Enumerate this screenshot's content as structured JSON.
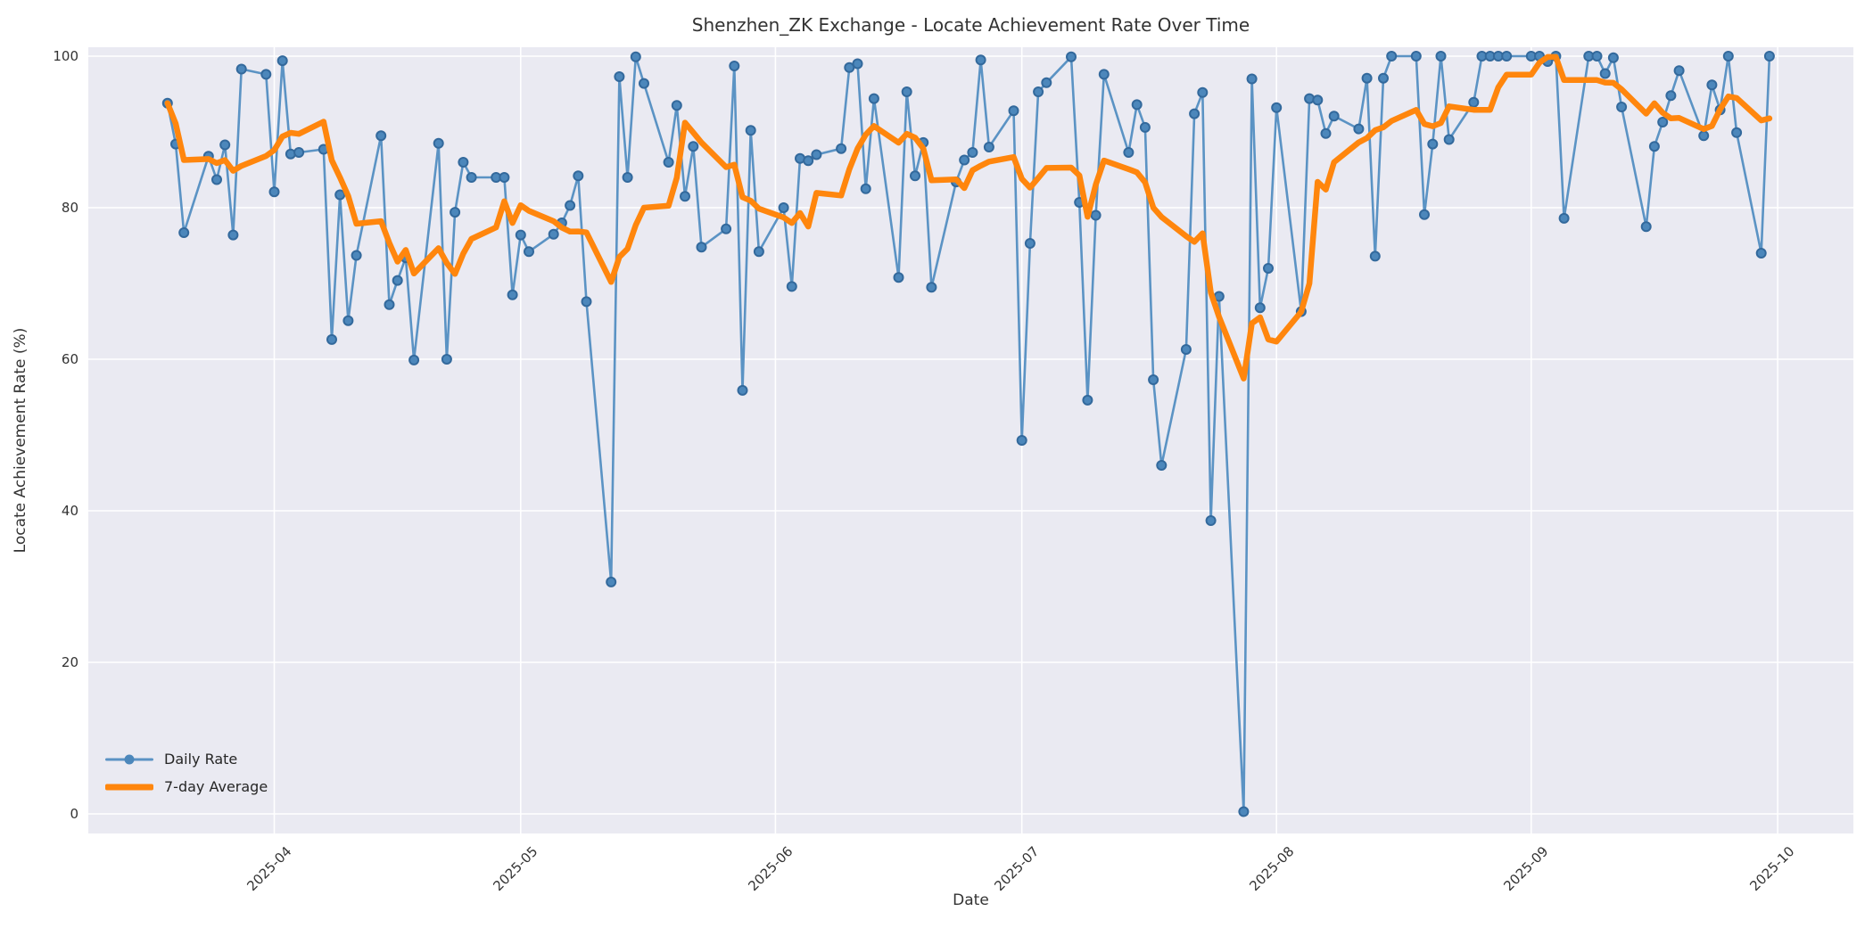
{
  "chart_data": {
    "type": "line",
    "title": "Shenzhen_ZK Exchange - Locate Achievement Rate Over Time",
    "xlabel": "Date",
    "ylabel": "Locate Achievement Rate (%)",
    "ylim": [
      0,
      100
    ],
    "grid": true,
    "background": "#eaeaf2",
    "grid_color": "#ffffff",
    "legend_position": "lower left",
    "y_ticks": [
      0,
      20,
      40,
      60,
      80,
      100
    ],
    "x_ticks": [
      {
        "label": "2025-04",
        "date": "2025-04-01"
      },
      {
        "label": "2025-05",
        "date": "2025-05-01"
      },
      {
        "label": "2025-06",
        "date": "2025-06-01"
      },
      {
        "label": "2025-07",
        "date": "2025-07-01"
      },
      {
        "label": "2025-08",
        "date": "2025-08-01"
      },
      {
        "label": "2025-09",
        "date": "2025-09-01"
      },
      {
        "label": "2025-10",
        "date": "2025-10-01"
      }
    ],
    "series": [
      {
        "name": "Daily Rate",
        "color": "#5b93c4",
        "marker_color": "#4c87bb",
        "marker_edge_color": "#33699c",
        "dates": [
          "2025-03-19",
          "2025-03-20",
          "2025-03-21",
          "2025-03-24",
          "2025-03-25",
          "2025-03-26",
          "2025-03-27",
          "2025-03-28",
          "2025-03-31",
          "2025-04-01",
          "2025-04-02",
          "2025-04-03",
          "2025-04-04",
          "2025-04-07",
          "2025-04-08",
          "2025-04-09",
          "2025-04-10",
          "2025-04-11",
          "2025-04-14",
          "2025-04-15",
          "2025-04-16",
          "2025-04-17",
          "2025-04-18",
          "2025-04-21",
          "2025-04-22",
          "2025-04-23",
          "2025-04-24",
          "2025-04-25",
          "2025-04-28",
          "2025-04-29",
          "2025-04-30",
          "2025-05-01",
          "2025-05-02",
          "2025-05-05",
          "2025-05-06",
          "2025-05-07",
          "2025-05-08",
          "2025-05-09",
          "2025-05-12",
          "2025-05-13",
          "2025-05-14",
          "2025-05-15",
          "2025-05-16",
          "2025-05-19",
          "2025-05-20",
          "2025-05-21",
          "2025-05-22",
          "2025-05-23",
          "2025-05-26",
          "2025-05-27",
          "2025-05-28",
          "2025-05-29",
          "2025-05-30",
          "2025-06-02",
          "2025-06-03",
          "2025-06-04",
          "2025-06-05",
          "2025-06-06",
          "2025-06-09",
          "2025-06-10",
          "2025-06-11",
          "2025-06-12",
          "2025-06-13",
          "2025-06-16",
          "2025-06-17",
          "2025-06-18",
          "2025-06-19",
          "2025-06-20",
          "2025-06-23",
          "2025-06-24",
          "2025-06-25",
          "2025-06-26",
          "2025-06-27",
          "2025-06-30",
          "2025-07-01",
          "2025-07-02",
          "2025-07-03",
          "2025-07-04",
          "2025-07-07",
          "2025-07-08",
          "2025-07-09",
          "2025-07-10",
          "2025-07-11",
          "2025-07-14",
          "2025-07-15",
          "2025-07-16",
          "2025-07-17",
          "2025-07-18",
          "2025-07-21",
          "2025-07-22",
          "2025-07-23",
          "2025-07-24",
          "2025-07-25",
          "2025-07-28",
          "2025-07-29",
          "2025-07-30",
          "2025-07-31",
          "2025-08-01",
          "2025-08-04",
          "2025-08-05",
          "2025-08-06",
          "2025-08-07",
          "2025-08-08",
          "2025-08-11",
          "2025-08-12",
          "2025-08-13",
          "2025-08-14",
          "2025-08-15",
          "2025-08-18",
          "2025-08-19",
          "2025-08-20",
          "2025-08-21",
          "2025-08-22",
          "2025-08-25",
          "2025-08-26",
          "2025-08-27",
          "2025-08-28",
          "2025-08-29",
          "2025-09-01",
          "2025-09-02",
          "2025-09-03",
          "2025-09-04",
          "2025-09-05",
          "2025-09-08",
          "2025-09-09",
          "2025-09-10",
          "2025-09-11",
          "2025-09-12",
          "2025-09-15",
          "2025-09-16",
          "2025-09-17",
          "2025-09-18",
          "2025-09-19",
          "2025-09-22",
          "2025-09-23",
          "2025-09-24",
          "2025-09-25",
          "2025-09-26",
          "2025-09-29",
          "2025-09-30"
        ],
        "values": [
          93.8,
          88.4,
          76.7,
          86.8,
          83.7,
          88.3,
          76.4,
          98.3,
          97.6,
          82.1,
          99.4,
          87.1,
          87.3,
          87.7,
          62.6,
          81.7,
          65.1,
          73.7,
          89.5,
          67.2,
          70.4,
          73.4,
          59.9,
          88.5,
          60.0,
          79.4,
          86.0,
          84.0,
          84.0,
          84.0,
          68.5,
          76.4,
          74.2,
          76.5,
          78.0,
          80.3,
          84.2,
          67.6,
          30.6,
          97.3,
          84.0,
          99.9,
          96.4,
          86.0,
          93.5,
          81.5,
          88.1,
          74.8,
          77.2,
          98.7,
          55.9,
          90.2,
          74.2,
          80.0,
          69.6,
          86.5,
          86.2,
          87.0,
          87.8,
          98.5,
          99.0,
          82.5,
          94.4,
          70.8,
          95.3,
          84.2,
          88.6,
          69.5,
          83.4,
          86.3,
          87.3,
          99.5,
          88.0,
          92.8,
          49.3,
          75.3,
          95.3,
          96.5,
          99.9,
          80.7,
          54.6,
          79.0,
          97.6,
          87.3,
          93.6,
          90.6,
          57.3,
          46.0,
          61.3,
          92.4,
          95.2,
          38.7,
          68.3,
          0.3,
          97.0,
          66.8,
          72.0,
          93.2,
          66.3,
          94.4,
          94.2,
          89.8,
          92.1,
          90.4,
          97.1,
          73.6,
          97.1,
          100.0,
          100.0,
          79.1,
          88.4,
          100.0,
          89.0,
          93.9,
          100.0,
          100.0,
          100.0,
          100.0,
          100.0,
          100.0,
          99.3,
          100.0,
          78.6,
          100.0,
          100.0,
          97.7,
          99.8,
          93.3,
          77.5,
          88.1,
          91.3,
          94.8,
          98.1,
          89.5,
          96.2,
          92.9,
          100.0,
          89.9,
          74.0,
          100.0
        ]
      },
      {
        "name": "7-day Average",
        "color": "#ff860d",
        "derived_from": "Daily Rate",
        "derivation": "rolling mean of last 7 trading days, min 1"
      }
    ]
  }
}
